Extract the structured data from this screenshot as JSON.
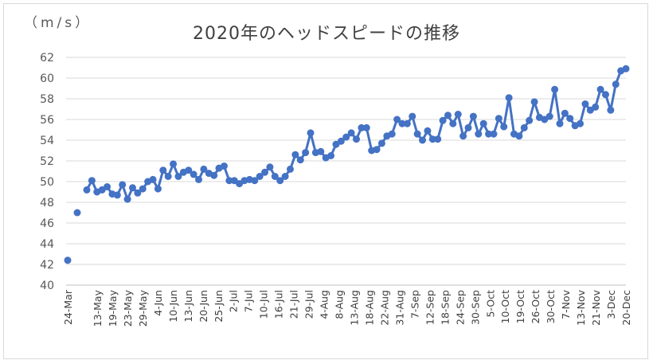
{
  "chart_data": {
    "type": "line",
    "title": "2020年のヘッドスピードの推移",
    "ylabel": "（m/s）",
    "xlabel": "",
    "ylim": [
      40,
      62
    ],
    "yticks": [
      40,
      42,
      44,
      46,
      48,
      50,
      52,
      54,
      56,
      58,
      60,
      62
    ],
    "grid": true,
    "legend": "none",
    "color": "#4472C4",
    "x_tick_labels": [
      "24-Mar",
      "13-May",
      "19-May",
      "23-May",
      "29-May",
      "4-Jun",
      "10-Jun",
      "13-Jun",
      "20-Jun",
      "25-Jun",
      "2-Jul",
      "7-Jul",
      "10-Jul",
      "16-Jul",
      "21-Jul",
      "29-Jul",
      "4-Aug",
      "8-Aug",
      "13-Aug",
      "18-Aug",
      "22-Aug",
      "31-Aug",
      "7-Sep",
      "12-Sep",
      "18-Sep",
      "24-Sep",
      "30-Sep",
      "5-Oct",
      "10-Oct",
      "19-Oct",
      "26-Oct",
      "30-Oct",
      "7-Nov",
      "13-Nov",
      "21-Nov",
      "3-Dec",
      "20-Dec"
    ],
    "first_points": [
      {
        "x": "24-Mar",
        "y": 42.4
      },
      {
        "x": "",
        "y": 47.0
      }
    ],
    "series_values": [
      49.2,
      50.1,
      49.0,
      49.2,
      49.5,
      48.8,
      48.7,
      49.7,
      48.3,
      49.4,
      48.9,
      49.3,
      50.0,
      50.2,
      49.3,
      51.1,
      50.5,
      51.7,
      50.5,
      50.9,
      51.1,
      50.7,
      50.2,
      51.2,
      50.8,
      50.6,
      51.3,
      51.5,
      50.1,
      50.1,
      49.8,
      50.1,
      50.2,
      50.1,
      50.5,
      50.9,
      51.4,
      50.5,
      50.1,
      50.5,
      51.2,
      52.6,
      52.1,
      52.8,
      54.7,
      52.8,
      52.9,
      52.3,
      52.5,
      53.6,
      53.9,
      54.3,
      54.7,
      54.1,
      55.2,
      55.2,
      53.0,
      53.1,
      53.7,
      54.4,
      54.6,
      56.0,
      55.6,
      55.6,
      56.3,
      54.6,
      54.0,
      54.9,
      54.1,
      54.1,
      55.9,
      56.4,
      55.6,
      56.5,
      54.4,
      55.2,
      56.3,
      54.6,
      55.6,
      54.6,
      54.6,
      56.1,
      55.3,
      58.1,
      54.6,
      54.4,
      55.2,
      55.9,
      57.7,
      56.2,
      56.0,
      56.3,
      58.9,
      55.6,
      56.6,
      56.1,
      55.4,
      55.6,
      57.5,
      56.9,
      57.2,
      58.9,
      58.4,
      56.9,
      59.4,
      60.7,
      60.9
    ]
  }
}
